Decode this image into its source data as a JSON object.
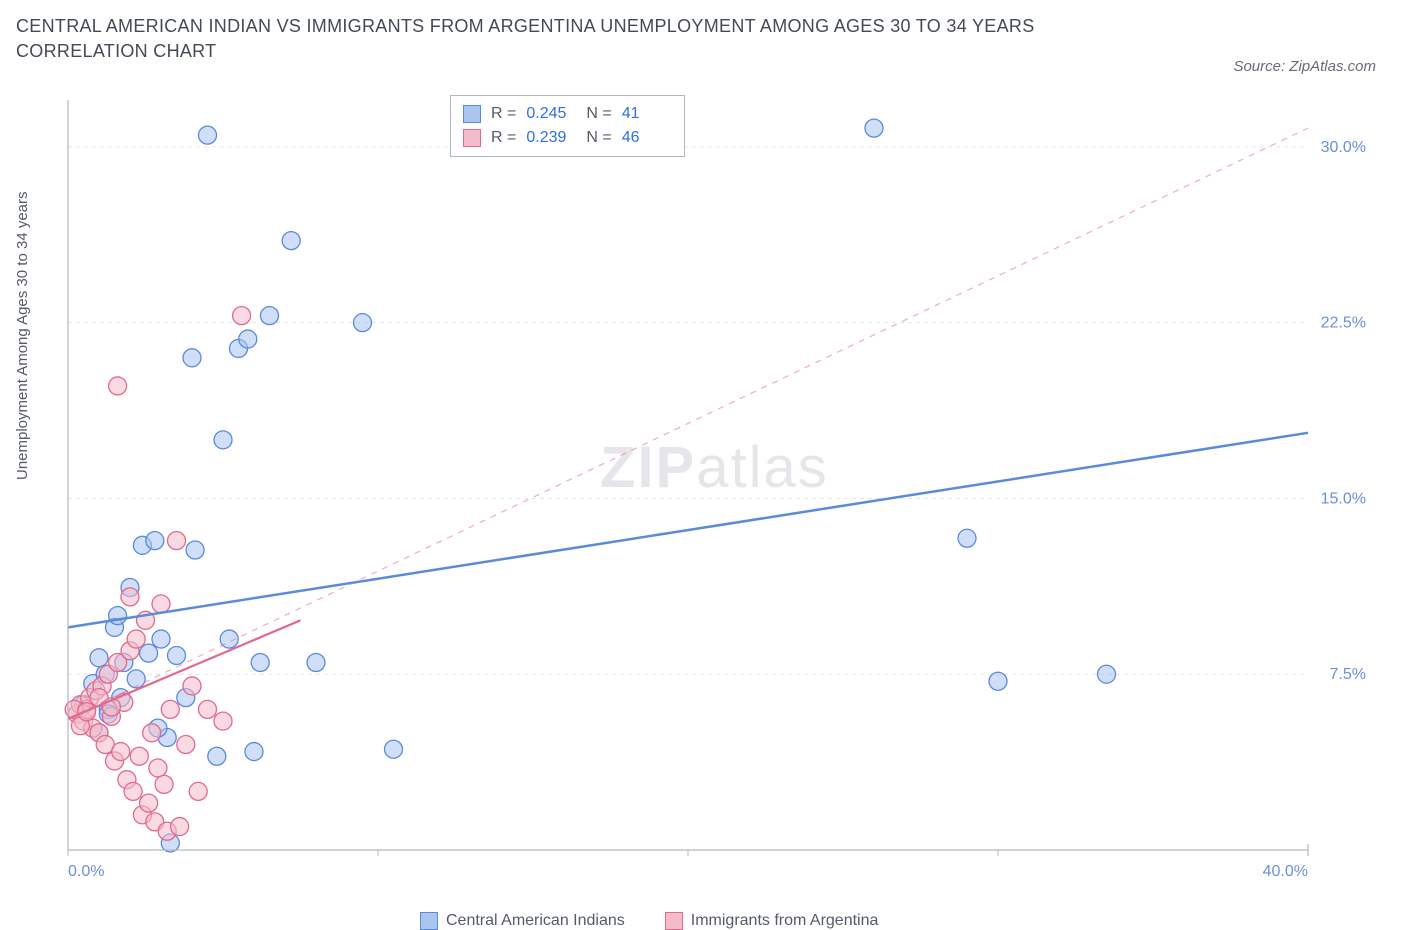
{
  "title": "CENTRAL AMERICAN INDIAN VS IMMIGRANTS FROM ARGENTINA UNEMPLOYMENT AMONG AGES 30 TO 34 YEARS CORRELATION CHART",
  "source": "Source: ZipAtlas.com",
  "watermark_bold": "ZIP",
  "watermark_rest": "atlas",
  "yaxis_label": "Unemployment Among Ages 30 to 34 years",
  "chart": {
    "type": "scatter",
    "background_color": "#ffffff",
    "grid_color": "#e4e6eb",
    "axis_color": "#b0b6c2",
    "tick_label_color": "#6b8fd9",
    "xlim": [
      0,
      40
    ],
    "ylim": [
      0,
      32
    ],
    "xticks": [
      0,
      10,
      20,
      30,
      40
    ],
    "xtick_labels": [
      "0.0%",
      "",
      "",
      "",
      "40.0%"
    ],
    "yticks": [
      7.5,
      15.0,
      22.5,
      30.0
    ],
    "ytick_labels": [
      "7.5%",
      "15.0%",
      "22.5%",
      "30.0%"
    ],
    "marker_radius": 9,
    "marker_opacity": 0.55,
    "series": [
      {
        "name": "Central American Indians",
        "color_fill": "#a9c5f0",
        "color_stroke": "#5b8ad8",
        "R": "0.245",
        "N": "41",
        "points": [
          [
            0.5,
            6.2
          ],
          [
            0.8,
            7.1
          ],
          [
            1.0,
            5.0
          ],
          [
            1.0,
            8.2
          ],
          [
            1.2,
            7.5
          ],
          [
            1.3,
            6.0
          ],
          [
            1.5,
            9.5
          ],
          [
            1.6,
            10.0
          ],
          [
            1.8,
            8.0
          ],
          [
            2.0,
            11.2
          ],
          [
            2.2,
            7.3
          ],
          [
            2.4,
            13.0
          ],
          [
            2.6,
            8.4
          ],
          [
            2.8,
            13.2
          ],
          [
            3.0,
            9.0
          ],
          [
            3.2,
            4.8
          ],
          [
            3.5,
            8.3
          ],
          [
            3.8,
            6.5
          ],
          [
            4.0,
            21.0
          ],
          [
            4.1,
            12.8
          ],
          [
            4.5,
            30.5
          ],
          [
            5.0,
            17.5
          ],
          [
            5.2,
            9.0
          ],
          [
            5.5,
            21.4
          ],
          [
            5.8,
            21.8
          ],
          [
            6.0,
            4.2
          ],
          [
            6.2,
            8.0
          ],
          [
            6.5,
            22.8
          ],
          [
            7.2,
            26.0
          ],
          [
            8.0,
            8.0
          ],
          [
            9.5,
            22.5
          ],
          [
            10.5,
            4.3
          ],
          [
            26.0,
            30.8
          ],
          [
            29.0,
            13.3
          ],
          [
            30.0,
            7.2
          ],
          [
            33.5,
            7.5
          ],
          [
            1.3,
            5.8
          ],
          [
            1.7,
            6.5
          ],
          [
            2.9,
            5.2
          ],
          [
            3.3,
            0.3
          ],
          [
            4.8,
            4.0
          ]
        ],
        "trend_solid": {
          "x1": 0,
          "y1": 9.5,
          "x2": 40,
          "y2": 17.8,
          "width": 2.5
        },
        "trend_dashed": null
      },
      {
        "name": "Immigrants from Argentina",
        "color_fill": "#f4bccb",
        "color_stroke": "#e06a8d",
        "R": "0.239",
        "N": "46",
        "points": [
          [
            0.3,
            5.8
          ],
          [
            0.4,
            6.2
          ],
          [
            0.5,
            5.5
          ],
          [
            0.6,
            6.0
          ],
          [
            0.7,
            6.5
          ],
          [
            0.8,
            5.2
          ],
          [
            0.9,
            6.8
          ],
          [
            1.0,
            5.0
          ],
          [
            1.1,
            7.0
          ],
          [
            1.2,
            4.5
          ],
          [
            1.3,
            7.5
          ],
          [
            1.4,
            5.7
          ],
          [
            1.5,
            3.8
          ],
          [
            1.6,
            8.0
          ],
          [
            1.7,
            4.2
          ],
          [
            1.8,
            6.3
          ],
          [
            1.9,
            3.0
          ],
          [
            2.0,
            8.5
          ],
          [
            2.1,
            2.5
          ],
          [
            2.2,
            9.0
          ],
          [
            2.3,
            4.0
          ],
          [
            2.4,
            1.5
          ],
          [
            2.5,
            9.8
          ],
          [
            2.6,
            2.0
          ],
          [
            2.7,
            5.0
          ],
          [
            2.8,
            1.2
          ],
          [
            2.9,
            3.5
          ],
          [
            3.0,
            10.5
          ],
          [
            3.1,
            2.8
          ],
          [
            3.2,
            0.8
          ],
          [
            3.3,
            6.0
          ],
          [
            3.5,
            13.2
          ],
          [
            3.6,
            1.0
          ],
          [
            3.8,
            4.5
          ],
          [
            4.0,
            7.0
          ],
          [
            4.2,
            2.5
          ],
          [
            4.5,
            6.0
          ],
          [
            1.6,
            19.8
          ],
          [
            2.0,
            10.8
          ],
          [
            5.0,
            5.5
          ],
          [
            5.6,
            22.8
          ],
          [
            0.2,
            6.0
          ],
          [
            0.4,
            5.3
          ],
          [
            0.6,
            5.9
          ],
          [
            1.0,
            6.5
          ],
          [
            1.4,
            6.1
          ]
        ],
        "trend_solid": {
          "x1": 0,
          "y1": 5.6,
          "x2": 7.5,
          "y2": 9.8,
          "width": 2.2
        },
        "trend_dashed": {
          "x1": 0,
          "y1": 5.6,
          "x2": 40,
          "y2": 30.8,
          "width": 1.2
        }
      }
    ],
    "stat_legend": {
      "R_label": "R =",
      "N_label": "N ="
    },
    "bottom_legend": true
  }
}
